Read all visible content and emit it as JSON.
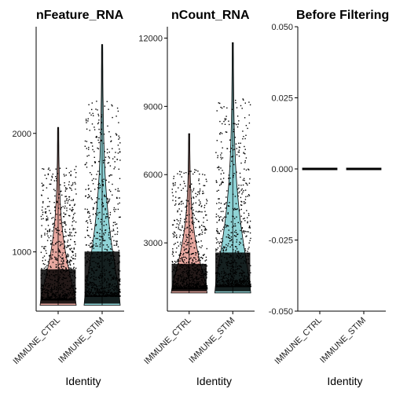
{
  "chart_data": [
    {
      "type": "violin",
      "title": "nFeature_RNA",
      "xlabel": "Identity",
      "ylabel": "",
      "categories": [
        "IMMUNE_CTRL",
        "IMMUNE_STIM"
      ],
      "ylim": [
        500,
        2900
      ],
      "yticks": [
        1000,
        2000
      ],
      "ytick_labels": [
        "1000",
        "2000"
      ],
      "series": [
        {
          "category": "IMMUNE_CTRL",
          "fill": "#e8a8a0",
          "summary": {
            "min": 550,
            "median": 800,
            "max": 2050
          }
        },
        {
          "category": "IMMUNE_STIM",
          "fill": "#8fd3d6",
          "summary": {
            "min": 550,
            "median": 950,
            "max": 2750
          }
        }
      ]
    },
    {
      "type": "violin",
      "title": "nCount_RNA",
      "xlabel": "Identity",
      "ylabel": "",
      "categories": [
        "IMMUNE_CTRL",
        "IMMUNE_STIM"
      ],
      "ylim": [
        0,
        12500
      ],
      "yticks": [
        3000,
        6000,
        9000,
        12000
      ],
      "ytick_labels": [
        "3000",
        "6000",
        "9000",
        "12000"
      ],
      "series": [
        {
          "category": "IMMUNE_CTRL",
          "fill": "#e8a8a0",
          "summary": {
            "min": 800,
            "median": 1800,
            "max": 7800
          }
        },
        {
          "category": "IMMUNE_STIM",
          "fill": "#8fd3d6",
          "summary": {
            "min": 800,
            "median": 2300,
            "max": 11800
          }
        }
      ]
    },
    {
      "type": "violin",
      "title": "Before Filtering",
      "xlabel": "Identity",
      "ylabel": "",
      "categories": [
        "IMMUNE_CTRL",
        "IMMUNE_STIM"
      ],
      "ylim": [
        -0.05,
        0.05
      ],
      "yticks": [
        -0.05,
        -0.025,
        0,
        0.025,
        0.05
      ],
      "ytick_labels": [
        "-0.050",
        "-0.025",
        "0.000",
        "0.025",
        "0.050"
      ],
      "series": [
        {
          "category": "IMMUNE_CTRL",
          "constant": 0
        },
        {
          "category": "IMMUNE_STIM",
          "constant": 0
        }
      ]
    }
  ]
}
